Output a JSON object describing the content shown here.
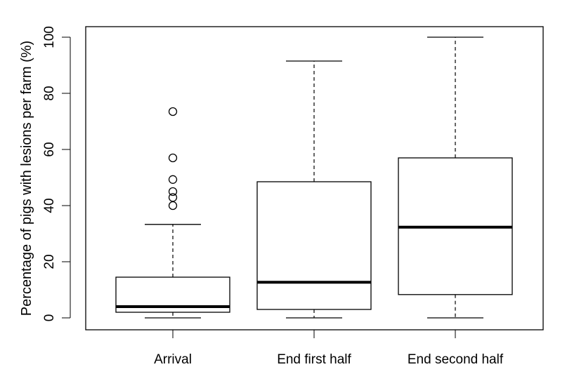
{
  "chart_data": {
    "type": "boxplot",
    "title": "",
    "xlabel": "",
    "ylabel": "Percentage of pigs with lesions per farm (%)",
    "ylim": [
      0,
      100
    ],
    "yticks": [
      0,
      20,
      40,
      60,
      80,
      100
    ],
    "grid": false,
    "categories": [
      "Arrival",
      "End first half",
      "End second half"
    ],
    "boxes": [
      {
        "category": "Arrival",
        "whisker_low": 0,
        "q1": 2,
        "median": 4,
        "q3": 14.5,
        "whisker_high": 33.3,
        "outliers": [
          40,
          42.9,
          45,
          49.3,
          57,
          73.5
        ]
      },
      {
        "category": "End first half",
        "whisker_low": 0,
        "q1": 3,
        "median": 12.7,
        "q3": 48.5,
        "whisker_high": 91.5,
        "outliers": []
      },
      {
        "category": "End second half",
        "whisker_low": 0,
        "q1": 8.3,
        "median": 32.3,
        "q3": 57,
        "whisker_high": 100,
        "outliers": []
      }
    ]
  }
}
